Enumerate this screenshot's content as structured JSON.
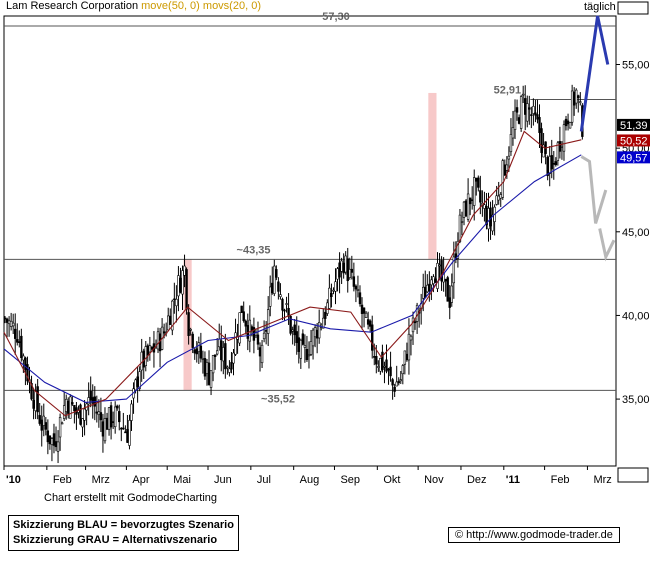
{
  "header": {
    "title": "Lam Research Corporation",
    "ma_label_1": "move(50, 0)",
    "ma_label_2": "movs(20, 0)",
    "period": "täglich"
  },
  "footer": {
    "credit": "Chart erstellt mit GodmodeCharting",
    "legend_blue": "Skizzierung BLAU = bevorzugtes Szenario",
    "legend_gray": "Skizzierung GRAU = Alternativszenario",
    "url": "http://www.godmode-trader.de",
    "copyright_symbol": "©"
  },
  "chart_data": {
    "type": "candlestick",
    "title": "Lam Research Corporation",
    "y_axis": {
      "ticks": [
        "55,00",
        "50,00",
        "45,00",
        "40,00",
        "35,00"
      ],
      "range": [
        31.0,
        57.9
      ]
    },
    "x_axis": {
      "labels": [
        "'10",
        "Feb",
        "Mrz",
        "Apr",
        "Mai",
        "Jun",
        "Jul",
        "Aug",
        "Sep",
        "Okt",
        "Nov",
        "Dez",
        "'11",
        "Feb",
        "Mrz"
      ]
    },
    "levels": [
      {
        "value": 57.3,
        "label": "57,30"
      },
      {
        "value": 52.91,
        "label": "52,91"
      },
      {
        "value": 43.35,
        "label": "~43,35"
      },
      {
        "value": 35.52,
        "label": "~35,52"
      }
    ],
    "price_tags": [
      {
        "value": 51.39,
        "label": "51,39",
        "color": "#000000"
      },
      {
        "value": 50.52,
        "label": "50,52",
        "color": "#aa0000"
      },
      {
        "value": 49.57,
        "label": "49,57",
        "color": "#0000cc"
      }
    ],
    "price_path": [
      [
        0,
        39.8
      ],
      [
        6,
        39.0
      ],
      [
        12,
        36.0
      ],
      [
        18,
        33.5
      ],
      [
        24,
        32.3
      ],
      [
        30,
        35.0
      ],
      [
        36,
        34.0
      ],
      [
        42,
        35.0
      ],
      [
        48,
        33.5
      ],
      [
        54,
        34.0
      ],
      [
        60,
        33.0
      ],
      [
        66,
        37.0
      ],
      [
        72,
        37.8
      ],
      [
        78,
        39.0
      ],
      [
        84,
        41.5
      ],
      [
        88,
        42.8
      ],
      [
        90,
        39.5
      ],
      [
        94,
        38.0
      ],
      [
        100,
        36.5
      ],
      [
        104,
        38.0
      ],
      [
        110,
        37.0
      ],
      [
        116,
        40.5
      ],
      [
        120,
        39.0
      ],
      [
        126,
        37.5
      ],
      [
        132,
        43.0
      ],
      [
        136,
        41.0
      ],
      [
        142,
        38.5
      ],
      [
        146,
        37.5
      ],
      [
        152,
        39.0
      ],
      [
        158,
        40.5
      ],
      [
        162,
        42.0
      ],
      [
        166,
        43.3
      ],
      [
        170,
        42.0
      ],
      [
        174,
        40.5
      ],
      [
        178,
        39.0
      ],
      [
        182,
        37.5
      ],
      [
        186,
        37.0
      ],
      [
        190,
        35.8
      ],
      [
        194,
        36.2
      ],
      [
        198,
        38.5
      ],
      [
        202,
        40.0
      ],
      [
        206,
        41.5
      ],
      [
        210,
        43.0
      ],
      [
        214,
        42.0
      ],
      [
        218,
        41.0
      ],
      [
        222,
        45.0
      ],
      [
        226,
        46.5
      ],
      [
        230,
        47.5
      ],
      [
        234,
        46.5
      ],
      [
        238,
        45.5
      ],
      [
        242,
        47.5
      ],
      [
        246,
        49.5
      ],
      [
        250,
        51.5
      ],
      [
        254,
        52.8
      ],
      [
        258,
        52.0
      ],
      [
        262,
        51.0
      ],
      [
        265,
        49.2
      ],
      [
        268,
        48.5
      ],
      [
        272,
        50.5
      ],
      [
        276,
        52.0
      ],
      [
        280,
        53.3
      ],
      [
        283,
        51.4
      ]
    ],
    "sma50_path": [
      [
        0,
        38.0
      ],
      [
        20,
        36.0
      ],
      [
        40,
        34.8
      ],
      [
        60,
        35.0
      ],
      [
        80,
        37.2
      ],
      [
        100,
        38.5
      ],
      [
        120,
        38.8
      ],
      [
        140,
        39.8
      ],
      [
        160,
        39.2
      ],
      [
        180,
        39.0
      ],
      [
        200,
        40.0
      ],
      [
        220,
        43.2
      ],
      [
        240,
        46.0
      ],
      [
        260,
        48.0
      ],
      [
        283,
        49.6
      ]
    ],
    "sma20_path": [
      [
        0,
        39.0
      ],
      [
        15,
        35.5
      ],
      [
        30,
        34.0
      ],
      [
        50,
        35.0
      ],
      [
        70,
        37.5
      ],
      [
        90,
        40.5
      ],
      [
        110,
        38.5
      ],
      [
        130,
        39.5
      ],
      [
        150,
        40.5
      ],
      [
        170,
        40.2
      ],
      [
        185,
        37.5
      ],
      [
        200,
        39.5
      ],
      [
        215,
        42.5
      ],
      [
        230,
        46.0
      ],
      [
        245,
        48.0
      ],
      [
        255,
        51.0
      ],
      [
        265,
        50.0
      ],
      [
        283,
        50.5
      ]
    ],
    "highlight_bands": [
      {
        "from": 88,
        "to": 92,
        "y_top": 43.35,
        "y_bottom": 35.52
      },
      {
        "from": 208,
        "to": 212,
        "y_top": 53.3,
        "y_bottom": 43.35
      }
    ],
    "scenario_blue": [
      [
        283,
        51.0
      ],
      [
        291,
        57.9
      ],
      [
        296,
        55.0
      ]
    ],
    "scenario_gray": [
      [
        283,
        49.5
      ],
      [
        287,
        49.2
      ],
      [
        290,
        45.5
      ],
      [
        295,
        47.5
      ]
    ],
    "scenario_gray_2": [
      [
        292,
        45.2
      ],
      [
        295,
        43.5
      ],
      [
        299,
        44.5
      ]
    ],
    "grid": false
  }
}
